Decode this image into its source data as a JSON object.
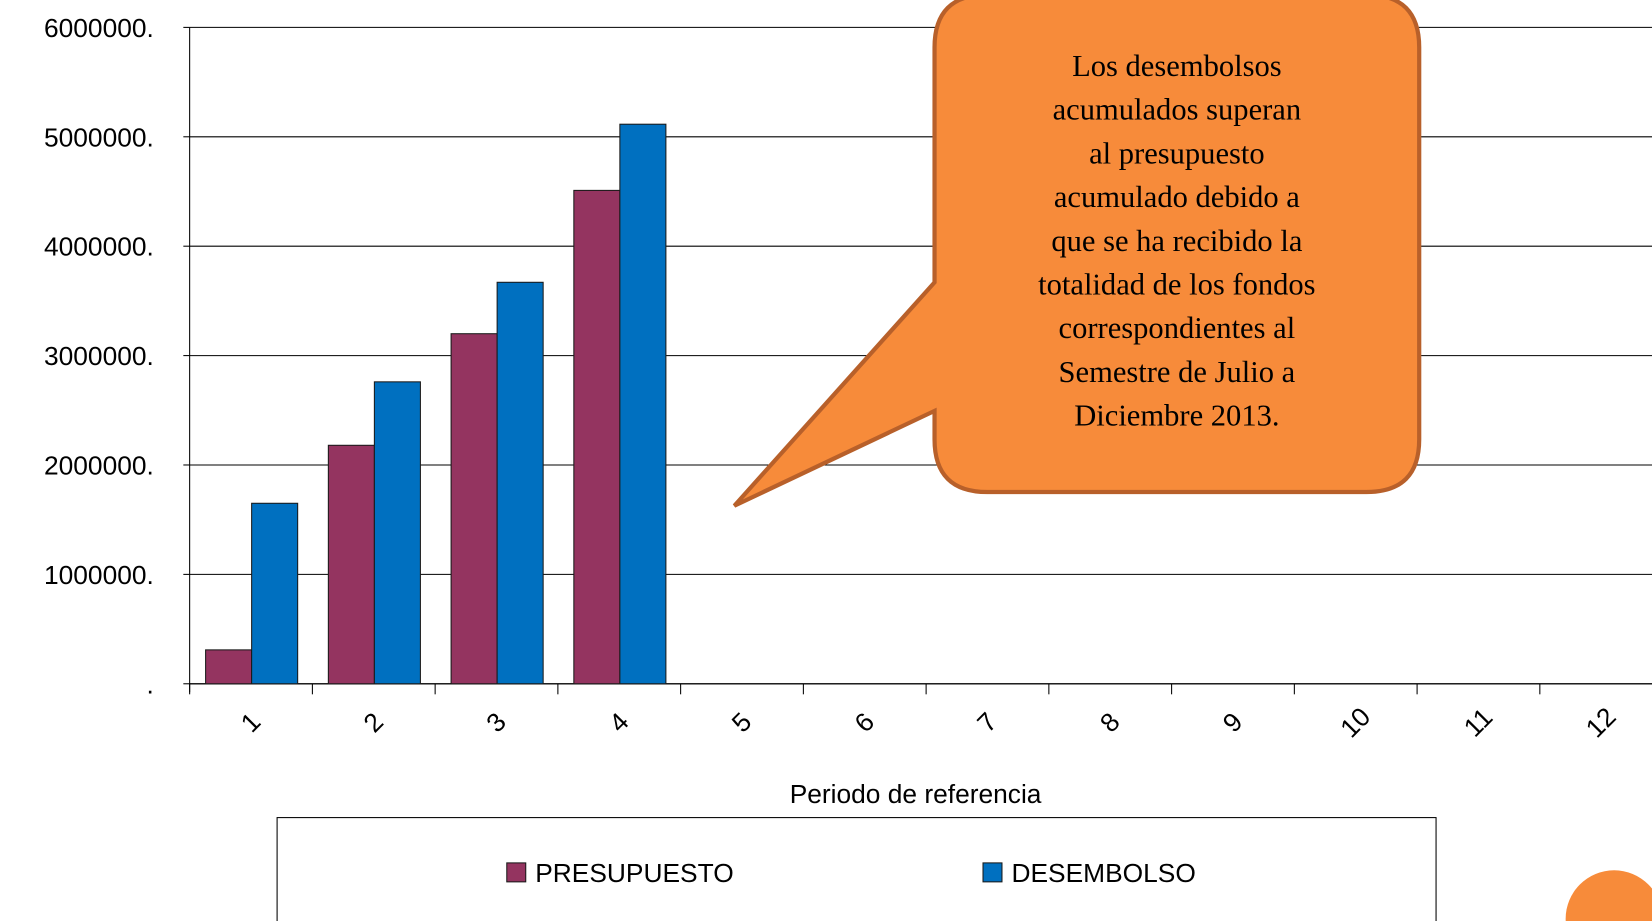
{
  "chart_data": {
    "type": "bar",
    "x_label": "Periodo de referencia",
    "categories": [
      "1",
      "2",
      "3",
      "4",
      "5",
      "6",
      "7",
      "8",
      "9",
      "10",
      "11",
      "12"
    ],
    "series": [
      {
        "name": "PRESUPUESTO",
        "color": "#943460",
        "values": [
          310000,
          2180000,
          3200000,
          4510000,
          null,
          null,
          null,
          null,
          null,
          null,
          null,
          null
        ]
      },
      {
        "name": "DESEMBOLSO",
        "color": "#0070c0",
        "values": [
          1650000,
          2760000,
          3670000,
          5115000,
          null,
          null,
          null,
          null,
          null,
          null,
          null,
          null
        ]
      }
    ],
    "ylim": [
      0,
      6000000
    ],
    "yticks": [
      {
        "value": 0,
        "label": "."
      },
      {
        "value": 1000000,
        "label": "1000000."
      },
      {
        "value": 2000000,
        "label": "2000000."
      },
      {
        "value": 3000000,
        "label": "3000000."
      },
      {
        "value": 4000000,
        "label": "4000000."
      },
      {
        "value": 5000000,
        "label": "5000000."
      },
      {
        "value": 6000000,
        "label": "6000000."
      }
    ],
    "grid": true,
    "legend": "bottom",
    "annotation": [
      "Los desembolsos",
      "acumulados superan",
      "al presupuesto",
      "acumulado debido a",
      "que se ha recibido la",
      "totalidad de los fondos",
      "correspondientes al",
      "Semestre de Julio a",
      "Diciembre 2013."
    ]
  }
}
